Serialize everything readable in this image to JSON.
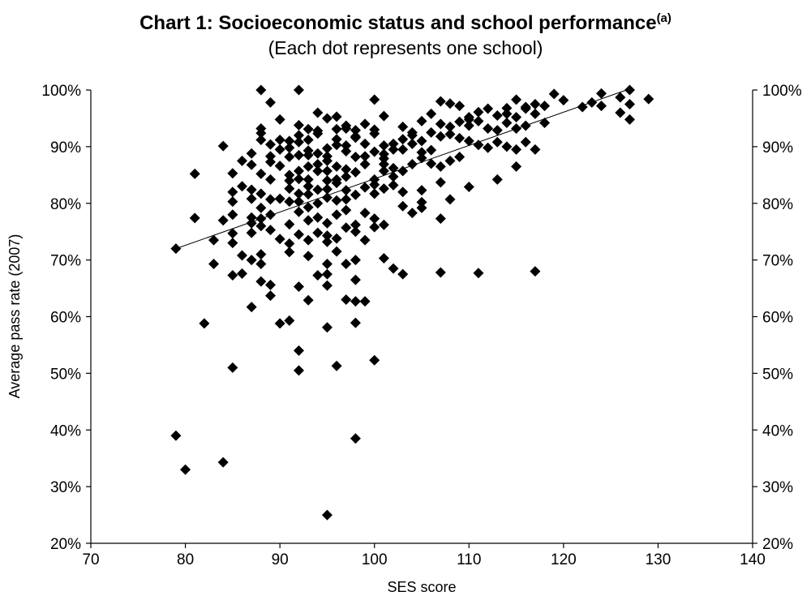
{
  "chart_data": {
    "type": "scatter",
    "title": "Chart 1: Socioeconomic status and school performance",
    "title_superscript": "(a)",
    "subtitle": "(Each dot represents one school)",
    "xlabel": "SES score",
    "ylabel": "Average pass rate (2007)",
    "xlim": [
      70,
      140
    ],
    "ylim": [
      20,
      100
    ],
    "x_ticks": [
      "70",
      "80",
      "90",
      "100",
      "110",
      "120",
      "130",
      "140"
    ],
    "y_ticks": [
      "20%",
      "30%",
      "40%",
      "50%",
      "60%",
      "70%",
      "80%",
      "90%",
      "100%"
    ],
    "y_tick_values": [
      20,
      30,
      40,
      50,
      60,
      70,
      80,
      90,
      100
    ],
    "x_tick_values": [
      70,
      80,
      90,
      100,
      110,
      120,
      130,
      140
    ],
    "secondary_y_axis": true,
    "grid": false,
    "marker": "diamond",
    "marker_color": "#000000",
    "trendline": {
      "x": [
        79,
        127
      ],
      "y": [
        72,
        100.2
      ]
    },
    "points": [
      [
        79,
        39
      ],
      [
        80,
        33
      ],
      [
        84,
        34.3
      ],
      [
        95,
        25
      ],
      [
        98,
        38.5
      ],
      [
        100,
        52.3
      ],
      [
        96,
        51.3
      ],
      [
        92,
        50.5
      ],
      [
        92,
        54
      ],
      [
        85,
        51
      ],
      [
        82,
        58.8
      ],
      [
        90,
        58.8
      ],
      [
        91,
        59.3
      ],
      [
        95,
        58.1
      ],
      [
        98,
        58.9
      ],
      [
        87,
        61.7
      ],
      [
        89,
        63.7
      ],
      [
        93,
        62.9
      ],
      [
        97,
        63
      ],
      [
        98,
        62.7
      ],
      [
        99,
        62.7
      ],
      [
        85,
        67.3
      ],
      [
        86,
        67.6
      ],
      [
        88,
        66.2
      ],
      [
        89,
        65.6
      ],
      [
        92,
        65.3
      ],
      [
        94,
        67.3
      ],
      [
        95,
        65.5
      ],
      [
        97,
        69.3
      ],
      [
        98,
        66.5
      ],
      [
        103,
        67.5
      ],
      [
        107,
        67.8
      ],
      [
        111,
        67.7
      ],
      [
        117,
        68
      ],
      [
        83,
        69.3
      ],
      [
        86,
        70.8
      ],
      [
        88,
        69.3
      ],
      [
        87,
        70
      ],
      [
        88,
        71
      ],
      [
        93,
        70.7
      ],
      [
        95,
        69.3
      ],
      [
        95,
        67.5
      ],
      [
        96,
        71.5
      ],
      [
        98,
        70
      ],
      [
        101,
        70.3
      ],
      [
        102,
        68.5
      ],
      [
        79,
        72
      ],
      [
        83,
        73.5
      ],
      [
        85,
        73
      ],
      [
        85,
        74.7
      ],
      [
        87,
        74.8
      ],
      [
        89,
        75.3
      ],
      [
        90,
        73.7
      ],
      [
        91,
        72.9
      ],
      [
        91,
        71.4
      ],
      [
        92,
        74.5
      ],
      [
        93,
        73.5
      ],
      [
        94,
        74.8
      ],
      [
        95,
        73.2
      ],
      [
        95,
        74.3
      ],
      [
        96,
        73.8
      ],
      [
        97,
        75.7
      ],
      [
        98,
        75
      ],
      [
        99,
        73.5
      ],
      [
        100,
        75.8
      ],
      [
        84,
        77
      ],
      [
        85,
        78
      ],
      [
        87,
        76.5
      ],
      [
        88,
        76
      ],
      [
        88,
        77.3
      ],
      [
        89,
        78
      ],
      [
        91,
        76.3
      ],
      [
        92,
        78.5
      ],
      [
        93,
        77
      ],
      [
        93,
        79.3
      ],
      [
        94,
        77.5
      ],
      [
        95,
        76.5
      ],
      [
        96,
        78
      ],
      [
        97,
        78.8
      ],
      [
        98,
        76.2
      ],
      [
        99,
        78.3
      ],
      [
        100,
        77.3
      ],
      [
        101,
        76.2
      ],
      [
        103,
        79.5
      ],
      [
        104,
        78.3
      ],
      [
        105,
        79.2
      ],
      [
        105,
        80.2
      ],
      [
        107,
        77.3
      ],
      [
        108,
        80.7
      ],
      [
        110,
        82.9
      ],
      [
        113,
        84.2
      ],
      [
        115,
        86.5
      ],
      [
        85,
        80.3
      ],
      [
        85,
        82
      ],
      [
        86,
        83
      ],
      [
        87,
        82.4
      ],
      [
        87,
        80.8
      ],
      [
        88,
        81.7
      ],
      [
        88,
        79.2
      ],
      [
        89,
        80.7
      ],
      [
        90,
        80.8
      ],
      [
        91,
        80.3
      ],
      [
        91,
        82.6
      ],
      [
        92,
        81.7
      ],
      [
        92,
        80.3
      ],
      [
        93,
        81.6
      ],
      [
        93,
        83
      ],
      [
        94,
        82.4
      ],
      [
        94,
        80
      ],
      [
        95,
        81
      ],
      [
        95,
        82.5
      ],
      [
        96,
        80.5
      ],
      [
        96,
        83.6
      ],
      [
        97,
        82.3
      ],
      [
        97,
        80.7
      ],
      [
        98,
        81.5
      ],
      [
        99,
        82.8
      ],
      [
        100,
        81.7
      ],
      [
        100,
        83.3
      ],
      [
        101,
        82.6
      ],
      [
        102,
        83.2
      ],
      [
        103,
        82
      ],
      [
        105,
        82.3
      ],
      [
        107,
        83.7
      ],
      [
        85,
        85.3
      ],
      [
        87,
        86.8
      ],
      [
        88,
        85.2
      ],
      [
        89,
        84.2
      ],
      [
        90,
        86.6
      ],
      [
        91,
        84
      ],
      [
        91,
        85
      ],
      [
        92,
        85.7
      ],
      [
        92,
        84.3
      ],
      [
        93,
        86.5
      ],
      [
        93,
        84.2
      ],
      [
        94,
        85.7
      ],
      [
        94,
        86.9
      ],
      [
        95,
        84
      ],
      [
        95,
        85.7
      ],
      [
        96,
        86.5
      ],
      [
        96,
        84.2
      ],
      [
        97,
        86
      ],
      [
        97,
        84.7
      ],
      [
        98,
        85.5
      ],
      [
        99,
        86.9
      ],
      [
        100,
        84.2
      ],
      [
        101,
        85.7
      ],
      [
        101,
        86.9
      ],
      [
        102,
        84.7
      ],
      [
        102,
        86.2
      ],
      [
        103,
        85.7
      ],
      [
        104,
        86.9
      ],
      [
        105,
        88
      ],
      [
        106,
        87
      ],
      [
        107,
        86.5
      ],
      [
        108,
        87.5
      ],
      [
        109,
        88.2
      ],
      [
        81,
        85.2
      ],
      [
        81,
        77.4
      ],
      [
        84,
        90.1
      ],
      [
        86,
        87.5
      ],
      [
        87,
        88.8
      ],
      [
        88,
        91.2
      ],
      [
        88,
        92.4
      ],
      [
        89,
        90.4
      ],
      [
        89,
        88.3
      ],
      [
        90,
        91.2
      ],
      [
        90,
        89.5
      ],
      [
        91,
        88.2
      ],
      [
        91,
        89.8
      ],
      [
        92,
        88.5
      ],
      [
        92,
        90.8
      ],
      [
        93,
        89.3
      ],
      [
        93,
        91.2
      ],
      [
        94,
        88.8
      ],
      [
        94,
        92.3
      ],
      [
        95,
        89.7
      ],
      [
        95,
        88.3
      ],
      [
        96,
        90.3
      ],
      [
        96,
        91.3
      ],
      [
        97,
        89.2
      ],
      [
        97,
        90.2
      ],
      [
        98,
        88.2
      ],
      [
        98,
        91.6
      ],
      [
        99,
        90.5
      ],
      [
        100,
        89.1
      ],
      [
        100,
        92.3
      ],
      [
        101,
        90.2
      ],
      [
        101,
        88.7
      ],
      [
        102,
        90.5
      ],
      [
        102,
        89.5
      ],
      [
        103,
        91.3
      ],
      [
        104,
        90.5
      ],
      [
        104,
        92
      ],
      [
        105,
        91
      ],
      [
        106,
        92.5
      ],
      [
        107,
        91.8
      ],
      [
        108,
        92.2
      ],
      [
        109,
        91.5
      ],
      [
        110,
        91
      ],
      [
        111,
        90.3
      ],
      [
        112,
        89.8
      ],
      [
        113,
        90.8
      ],
      [
        114,
        90
      ],
      [
        115,
        89.5
      ],
      [
        116,
        90.8
      ],
      [
        117,
        89.5
      ],
      [
        88,
        93.2
      ],
      [
        89,
        97.8
      ],
      [
        90,
        94.8
      ],
      [
        92,
        93.8
      ],
      [
        93,
        93.1
      ],
      [
        94,
        92.8
      ],
      [
        95,
        95
      ],
      [
        96,
        93.1
      ],
      [
        97,
        93.7
      ],
      [
        98,
        92.9
      ],
      [
        100,
        93
      ],
      [
        101,
        95.4
      ],
      [
        103,
        93.5
      ],
      [
        104,
        92.5
      ],
      [
        105,
        94.5
      ],
      [
        106,
        95.8
      ],
      [
        107,
        94
      ],
      [
        107,
        98
      ],
      [
        108,
        93.5
      ],
      [
        108,
        97.6
      ],
      [
        109,
        94.4
      ],
      [
        109,
        97.2
      ],
      [
        110,
        95.2
      ],
      [
        110,
        93.7
      ],
      [
        111,
        96.1
      ],
      [
        112,
        93.2
      ],
      [
        112,
        96.7
      ],
      [
        113,
        95.5
      ],
      [
        113,
        92.9
      ],
      [
        114,
        96.8
      ],
      [
        114,
        94.2
      ],
      [
        115,
        95.2
      ],
      [
        115,
        98.3
      ],
      [
        115,
        93.2
      ],
      [
        116,
        97
      ],
      [
        116,
        93.7
      ],
      [
        117,
        95.8
      ],
      [
        117,
        97.5
      ],
      [
        118,
        97.2
      ],
      [
        118,
        94.2
      ],
      [
        119,
        99.3
      ],
      [
        120,
        98.2
      ],
      [
        122,
        97
      ],
      [
        123,
        97.8
      ],
      [
        124,
        99.4
      ],
      [
        124,
        97.2
      ],
      [
        126,
        98.7
      ],
      [
        126,
        96
      ],
      [
        127,
        97.5
      ],
      [
        127,
        94.8
      ],
      [
        127,
        100
      ],
      [
        129,
        98.4
      ],
      [
        88,
        100
      ],
      [
        92,
        100
      ],
      [
        100,
        98.3
      ],
      [
        92,
        92
      ],
      [
        94,
        96
      ],
      [
        96,
        95.3
      ],
      [
        98,
        91.8
      ],
      [
        99,
        88.3
      ],
      [
        105,
        89
      ],
      [
        110,
        94.8
      ],
      [
        114,
        95.8
      ],
      [
        87,
        77.5
      ],
      [
        89,
        87.3
      ],
      [
        91,
        91
      ],
      [
        93,
        88.5
      ],
      [
        95,
        87.5
      ],
      [
        97,
        93.2
      ],
      [
        99,
        94
      ],
      [
        101,
        87.9
      ],
      [
        103,
        89.5
      ],
      [
        106,
        89.4
      ],
      [
        111,
        94.5
      ],
      [
        116,
        96.7
      ]
    ]
  }
}
